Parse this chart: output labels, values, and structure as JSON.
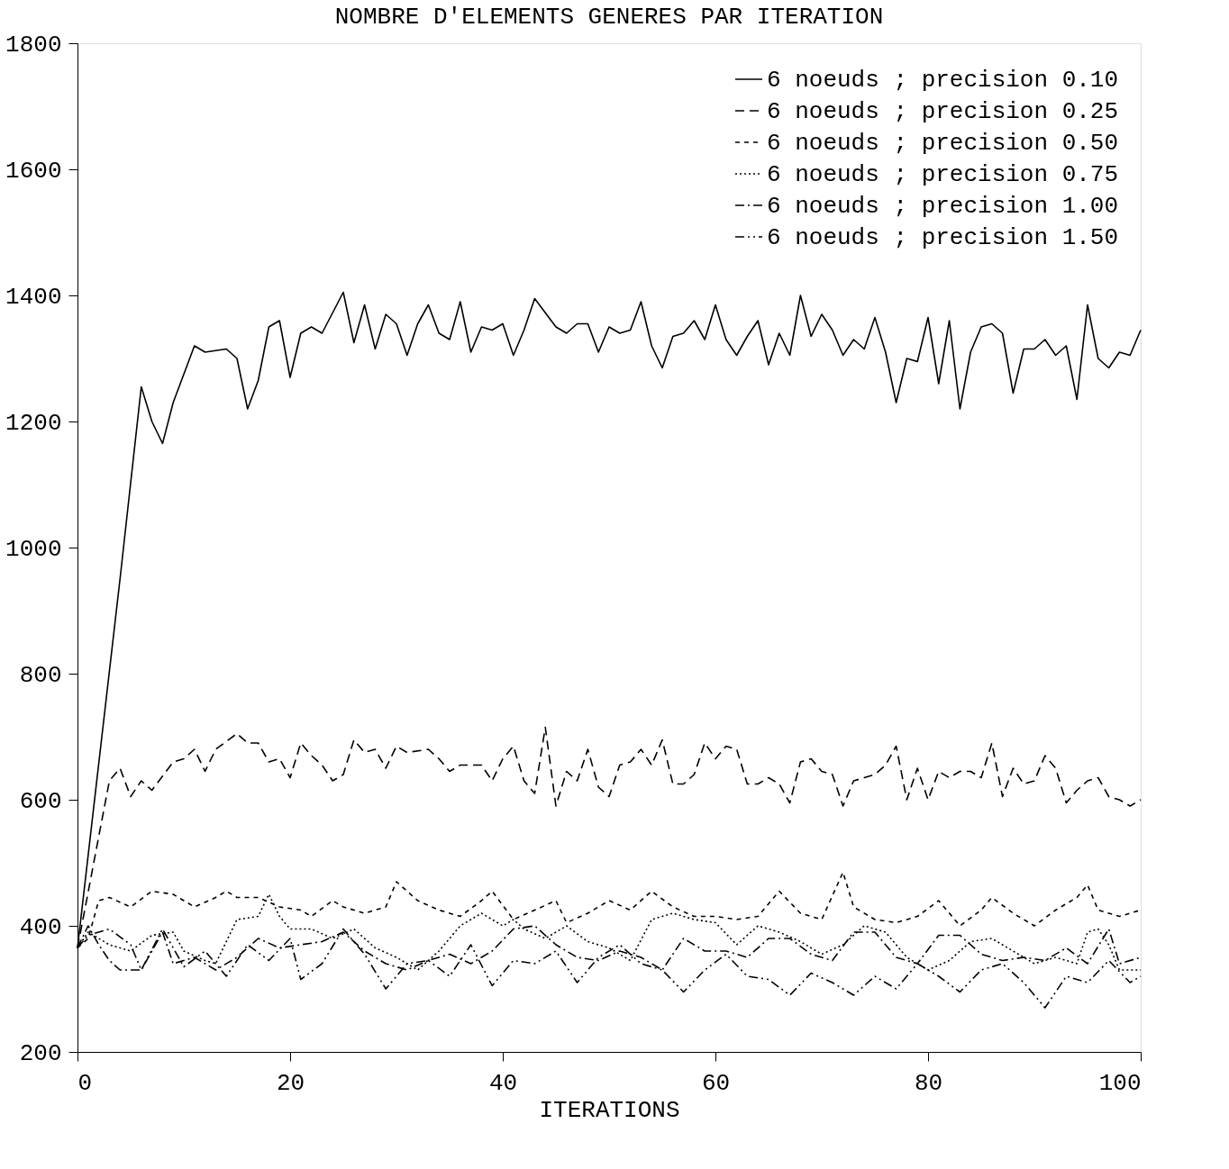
{
  "chart_data": {
    "type": "line",
    "title": "NOMBRE D'ELEMENTS GENERES PAR ITERATION",
    "xlabel": "ITERATIONS",
    "xlim": [
      0,
      100
    ],
    "xticks": [
      0,
      20,
      40,
      60,
      80,
      100
    ],
    "ylim": [
      200,
      1800
    ],
    "yticks": [
      200,
      400,
      600,
      800,
      1000,
      1200,
      1400,
      1600,
      1800
    ],
    "grid": false,
    "legend": "top right",
    "marker": "none",
    "series": [
      {
        "name": "6 noeuds ; precision 0.10",
        "color": "#000000",
        "line_style": "solid",
        "x": [
          0,
          4,
          6,
          7,
          8,
          9,
          11,
          12,
          14,
          15,
          16,
          17,
          18,
          19,
          20,
          21,
          22,
          23,
          25,
          26,
          27,
          28,
          29,
          30,
          31,
          32,
          33,
          34,
          35,
          36,
          37,
          38,
          39,
          40,
          41,
          42,
          43,
          45,
          46,
          47,
          48,
          49,
          50,
          51,
          52,
          53,
          54,
          55,
          56,
          57,
          58,
          59,
          60,
          61,
          62,
          63,
          64,
          65,
          66,
          67,
          68,
          69,
          70,
          71,
          72,
          73,
          74,
          75,
          76,
          77,
          78,
          79,
          80,
          81,
          82,
          83,
          84,
          85,
          86,
          87,
          88,
          89,
          90,
          91,
          92,
          93,
          94,
          95,
          96,
          97,
          98,
          99,
          100
        ],
        "values": [
          365,
          950,
          1255,
          1200,
          1165,
          1230,
          1320,
          1310,
          1315,
          1300,
          1220,
          1265,
          1350,
          1360,
          1270,
          1340,
          1350,
          1340,
          1405,
          1325,
          1385,
          1315,
          1370,
          1355,
          1305,
          1355,
          1385,
          1340,
          1330,
          1390,
          1310,
          1350,
          1345,
          1355,
          1305,
          1345,
          1395,
          1350,
          1340,
          1355,
          1355,
          1310,
          1350,
          1340,
          1345,
          1390,
          1320,
          1285,
          1335,
          1340,
          1360,
          1330,
          1385,
          1330,
          1305,
          1335,
          1360,
          1290,
          1340,
          1305,
          1400,
          1335,
          1370,
          1345,
          1305,
          1330,
          1315,
          1365,
          1310,
          1230,
          1300,
          1295,
          1365,
          1260,
          1360,
          1220,
          1310,
          1350,
          1355,
          1340,
          1245,
          1315,
          1315,
          1330,
          1305,
          1320,
          1235,
          1385,
          1300,
          1285,
          1310,
          1305,
          1345
        ]
      },
      {
        "name": "6 noeuds ; precision 0.25",
        "color": "#000000",
        "line_style": "dashed",
        "x": [
          0,
          3,
          4,
          5,
          6,
          7,
          9,
          10,
          11,
          12,
          13,
          15,
          16,
          17,
          18,
          19,
          20,
          21,
          22,
          23,
          24,
          25,
          26,
          27,
          28,
          29,
          30,
          31,
          33,
          34,
          35,
          36,
          38,
          39,
          40,
          41,
          42,
          43,
          44,
          45,
          46,
          47,
          48,
          49,
          50,
          51,
          52,
          53,
          54,
          55,
          56,
          57,
          58,
          59,
          60,
          61,
          62,
          63,
          64,
          65,
          66,
          67,
          68,
          69,
          70,
          71,
          72,
          73,
          74,
          75,
          76,
          77,
          78,
          79,
          80,
          81,
          82,
          83,
          84,
          85,
          86,
          87,
          88,
          89,
          90,
          91,
          92,
          93,
          94,
          95,
          96,
          97,
          98,
          99,
          100
        ],
        "values": [
          365,
          630,
          650,
          605,
          630,
          615,
          660,
          665,
          680,
          645,
          680,
          705,
          690,
          690,
          660,
          665,
          635,
          690,
          670,
          655,
          630,
          640,
          695,
          675,
          680,
          650,
          685,
          675,
          680,
          665,
          645,
          655,
          655,
          630,
          665,
          685,
          630,
          610,
          715,
          590,
          645,
          630,
          680,
          620,
          605,
          655,
          660,
          680,
          655,
          695,
          625,
          625,
          640,
          690,
          665,
          685,
          680,
          625,
          625,
          635,
          625,
          595,
          660,
          665,
          645,
          640,
          590,
          630,
          635,
          640,
          655,
          685,
          600,
          650,
          600,
          645,
          635,
          645,
          645,
          635,
          690,
          605,
          650,
          625,
          630,
          670,
          650,
          595,
          615,
          630,
          635,
          605,
          600,
          590,
          600
        ]
      },
      {
        "name": "6 noeuds ; precision 0.50",
        "color": "#000000",
        "line_style": "short-dashed",
        "x": [
          0,
          1,
          2,
          3,
          5,
          7,
          9,
          11,
          13,
          14,
          15,
          17,
          19,
          21,
          22,
          24,
          25,
          27,
          29,
          30,
          32,
          34,
          36,
          38,
          39,
          41,
          43,
          45,
          46,
          48,
          50,
          52,
          54,
          56,
          58,
          60,
          62,
          64,
          66,
          68,
          70,
          72,
          73,
          75,
          77,
          79,
          81,
          83,
          85,
          86,
          88,
          90,
          92,
          94,
          95,
          96,
          98,
          100
        ],
        "values": [
          365,
          380,
          440,
          445,
          430,
          455,
          450,
          430,
          445,
          455,
          445,
          445,
          430,
          425,
          415,
          440,
          430,
          420,
          430,
          470,
          440,
          425,
          415,
          440,
          455,
          410,
          425,
          440,
          405,
          420,
          440,
          425,
          455,
          430,
          415,
          415,
          410,
          415,
          455,
          420,
          410,
          485,
          430,
          410,
          405,
          415,
          440,
          400,
          425,
          445,
          420,
          400,
          425,
          445,
          465,
          425,
          415,
          425
        ]
      },
      {
        "name": "6 noeuds ; precision 0.75",
        "color": "#000000",
        "line_style": "dotted",
        "x": [
          0,
          1,
          3,
          5,
          7,
          9,
          10,
          12,
          13,
          15,
          17,
          18,
          19,
          20,
          22,
          24,
          26,
          28,
          30,
          32,
          34,
          36,
          38,
          40,
          41,
          42,
          44,
          46,
          48,
          50,
          52,
          54,
          56,
          58,
          60,
          62,
          64,
          66,
          68,
          70,
          72,
          74,
          76,
          78,
          80,
          82,
          84,
          86,
          88,
          90,
          92,
          94,
          95,
          96,
          97,
          98,
          100
        ],
        "values": [
          365,
          390,
          370,
          360,
          385,
          390,
          360,
          345,
          340,
          410,
          415,
          450,
          415,
          395,
          395,
          380,
          395,
          365,
          350,
          330,
          360,
          400,
          420,
          400,
          410,
          395,
          380,
          400,
          375,
          365,
          345,
          410,
          420,
          410,
          405,
          370,
          400,
          390,
          375,
          355,
          370,
          400,
          390,
          350,
          330,
          345,
          375,
          380,
          360,
          340,
          350,
          340,
          390,
          395,
          370,
          330,
          330
        ]
      },
      {
        "name": "6 noeuds ; precision 1.00",
        "color": "#000000",
        "line_style": "dashdot",
        "x": [
          0,
          1,
          2,
          3,
          4,
          6,
          8,
          9,
          11,
          13,
          15,
          17,
          19,
          21,
          23,
          25,
          27,
          29,
          31,
          33,
          35,
          37,
          39,
          41,
          43,
          45,
          47,
          49,
          51,
          53,
          55,
          57,
          59,
          61,
          63,
          65,
          67,
          69,
          71,
          73,
          75,
          77,
          79,
          81,
          83,
          85,
          87,
          89,
          91,
          93,
          95,
          97,
          98,
          100
        ],
        "values": [
          365,
          400,
          370,
          345,
          330,
          330,
          390,
          340,
          350,
          330,
          350,
          380,
          365,
          370,
          375,
          390,
          360,
          340,
          330,
          345,
          355,
          340,
          360,
          395,
          400,
          370,
          350,
          345,
          360,
          350,
          330,
          380,
          360,
          360,
          350,
          380,
          380,
          355,
          345,
          390,
          390,
          350,
          340,
          385,
          385,
          355,
          345,
          350,
          345,
          365,
          340,
          395,
          340,
          350
        ]
      },
      {
        "name": "6 noeuds ; precision 1.50",
        "color": "#000000",
        "line_style": "dashdotdot",
        "x": [
          0,
          1,
          3,
          5,
          6,
          8,
          10,
          12,
          14,
          16,
          18,
          20,
          21,
          23,
          25,
          27,
          29,
          31,
          33,
          35,
          37,
          39,
          41,
          43,
          45,
          47,
          49,
          51,
          53,
          55,
          57,
          59,
          61,
          63,
          65,
          67,
          69,
          71,
          73,
          75,
          77,
          79,
          81,
          83,
          85,
          87,
          89,
          91,
          93,
          95,
          97,
          99,
          100
        ],
        "values": [
          365,
          385,
          395,
          370,
          330,
          395,
          335,
          360,
          320,
          370,
          345,
          380,
          315,
          340,
          395,
          355,
          300,
          340,
          345,
          320,
          370,
          305,
          345,
          340,
          360,
          310,
          350,
          370,
          340,
          330,
          295,
          330,
          355,
          320,
          315,
          290,
          325,
          310,
          290,
          320,
          300,
          340,
          320,
          295,
          330,
          340,
          310,
          270,
          320,
          310,
          345,
          310,
          320
        ]
      }
    ]
  }
}
